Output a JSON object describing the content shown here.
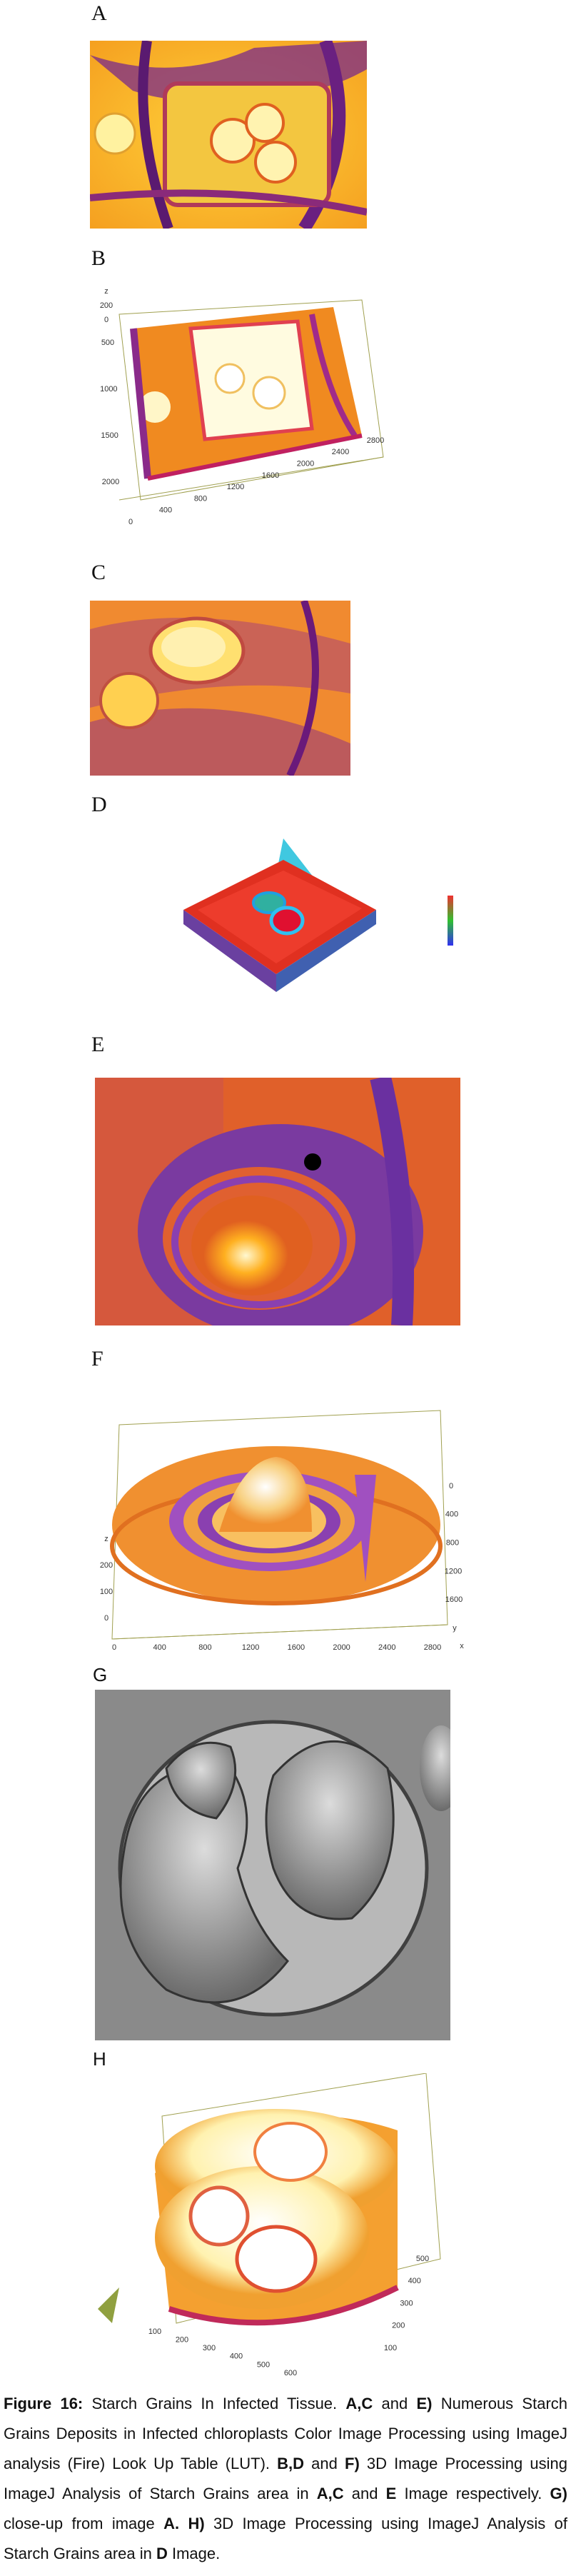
{
  "panels": [
    {
      "label": "A"
    },
    {
      "label": "B",
      "axes": [
        {
          "labels": [
            "z",
            "200",
            "0"
          ]
        },
        {
          "labels": [
            "500",
            "1000",
            "1500",
            "2000"
          ]
        },
        {
          "labels": [
            "0",
            "400",
            "800",
            "1200",
            "1600",
            "2000",
            "2400",
            "2800"
          ]
        }
      ]
    },
    {
      "label": "C"
    },
    {
      "label": "D"
    },
    {
      "label": "E"
    },
    {
      "label": "F",
      "axes": [
        {
          "labels": [
            "z",
            "200",
            "100",
            "0"
          ]
        },
        {
          "labels": [
            "0",
            "400",
            "800",
            "1200",
            "1600",
            "2000",
            "2400",
            "2800"
          ]
        },
        {
          "labels": [
            "0",
            "400",
            "800",
            "1200",
            "1600",
            "y"
          ]
        },
        {
          "labels": [
            "x"
          ]
        }
      ]
    },
    {
      "label": "G"
    },
    {
      "label": "H",
      "axes": [
        {
          "labels": [
            "100",
            "200",
            "300",
            "400",
            "500",
            "600"
          ]
        },
        {
          "labels": [
            "500",
            "400",
            "300",
            "200",
            "100"
          ]
        }
      ]
    }
  ],
  "caption": [
    {
      "text": "Figure 16:",
      "bold": true
    },
    {
      "text": " Starch Grains In Infected Tissue. ",
      "bold": false
    },
    {
      "text": "A,C",
      "bold": true
    },
    {
      "text": " and ",
      "bold": false
    },
    {
      "text": "E)",
      "bold": true
    },
    {
      "text": " Numerous Starch Grains Deposits in Infected chloroplasts Color Image Processing using ImageJ analysis (Fire) Look Up Table (LUT). ",
      "bold": false
    },
    {
      "text": "B,D",
      "bold": true
    },
    {
      "text": " and ",
      "bold": false
    },
    {
      "text": "F)",
      "bold": true
    },
    {
      "text": " 3D Image Processing using ImageJ Analysis of Starch Grains area in ",
      "bold": false
    },
    {
      "text": "A,C",
      "bold": true
    },
    {
      "text": " and ",
      "bold": false
    },
    {
      "text": "E",
      "bold": true
    },
    {
      "text": " Image respectively. ",
      "bold": false
    },
    {
      "text": "G)",
      "bold": true
    },
    {
      "text": " close-up from image ",
      "bold": false
    },
    {
      "text": "A.",
      "bold": true
    },
    {
      "text": " ",
      "bold": false
    },
    {
      "text": "H)",
      "bold": true
    },
    {
      "text": " 3D Image Processing using ImageJ Analysis of Starch Grains area in ",
      "bold": false
    },
    {
      "text": "D",
      "bold": true
    },
    {
      "text": " Image.",
      "bold": false
    }
  ]
}
